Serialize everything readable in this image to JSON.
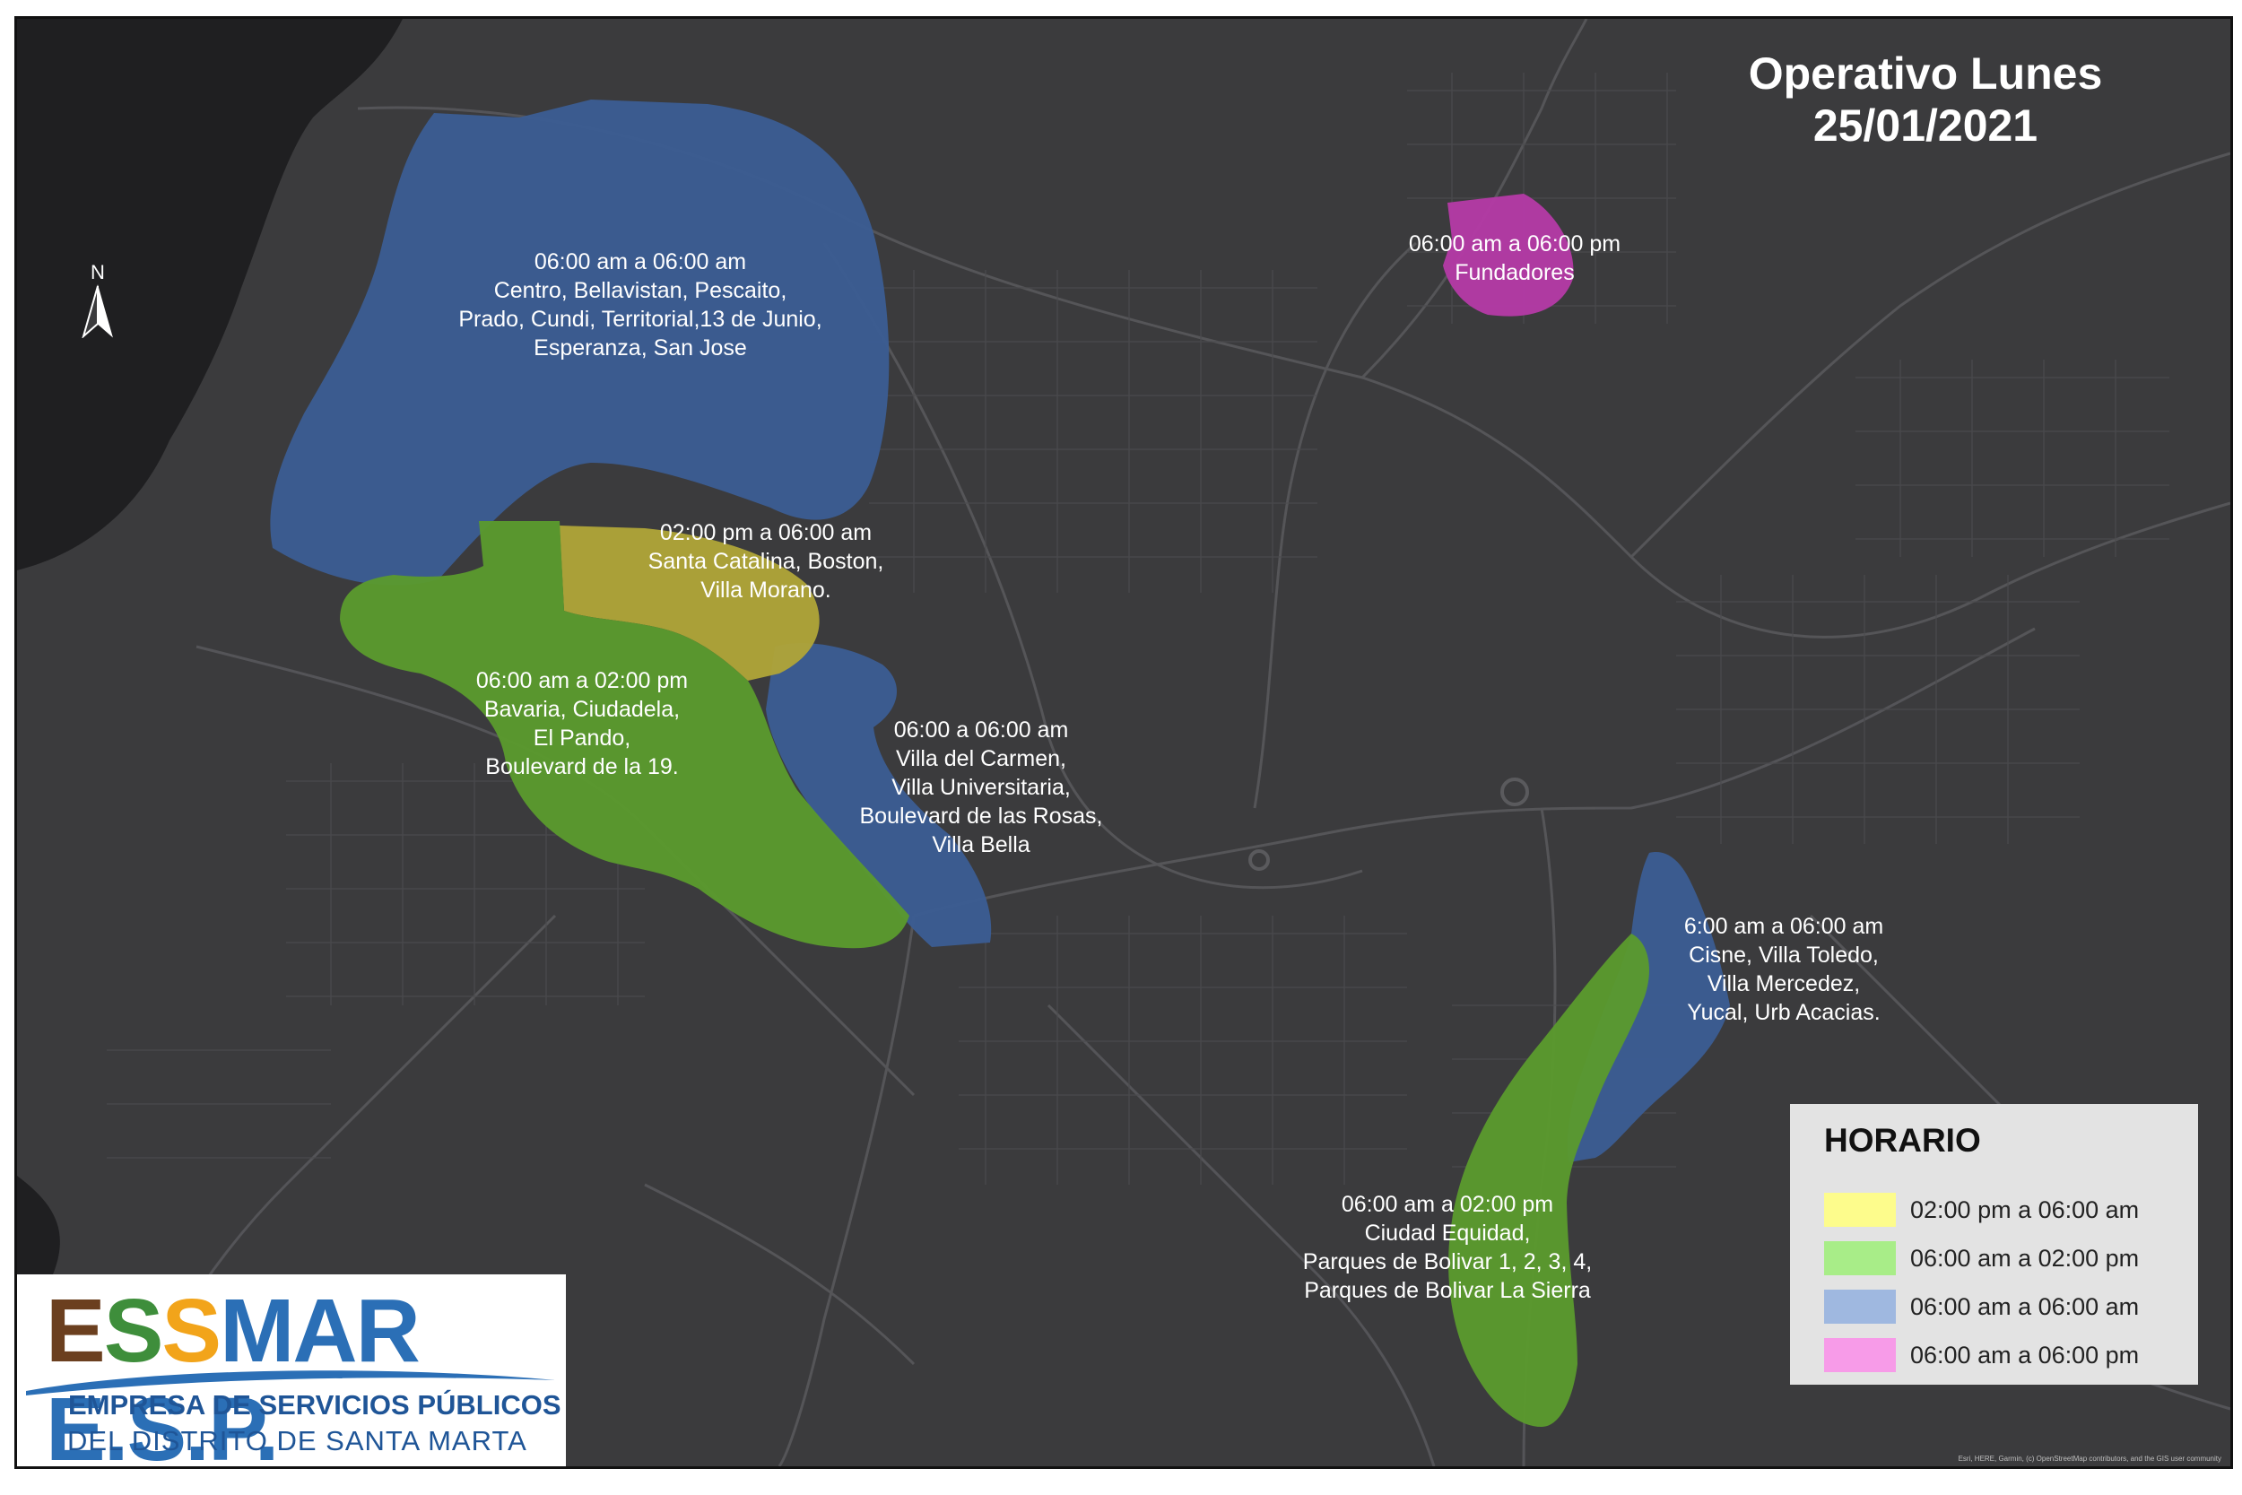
{
  "title": {
    "line1": "Operativo Lunes",
    "line2": "25/01/2021"
  },
  "north_arrow": {
    "letter": "N",
    "icon": "north-arrow-icon"
  },
  "colors": {
    "background": "#3b3b3d",
    "water": "#1f1f21",
    "roads": "#555558",
    "yellow": "#fdfc8c",
    "green": "#a8ed88",
    "blue": "#9fb8e0",
    "magenta": "#f79be8",
    "zone_yellow": "#b0a538",
    "zone_green": "#5b9b2d",
    "zone_blue": "#3b5d93",
    "zone_magenta": "#b53aa7"
  },
  "zones": [
    {
      "id": "centro",
      "color": "blue",
      "lines": [
        "06:00 am a 06:00 am",
        "Centro, Bellavistan, Pescaito,",
        "Prado, Cundi, Territorial,13 de Junio,",
        "Esperanza, San Jose"
      ]
    },
    {
      "id": "fundadores",
      "color": "magenta",
      "lines": [
        "06:00 am a 06:00 pm",
        "Fundadores"
      ]
    },
    {
      "id": "santa-catalina",
      "color": "yellow",
      "lines": [
        "02:00 pm a 06:00 am",
        "Santa Catalina, Boston,",
        "Villa Morano."
      ]
    },
    {
      "id": "bavaria",
      "color": "green",
      "lines": [
        "06:00 am a 02:00 pm",
        "Bavaria, Ciudadela,",
        "El Pando,",
        "Boulevard de la 19."
      ]
    },
    {
      "id": "villa-carmen",
      "color": "blue",
      "lines": [
        "06:00 a 06:00 am",
        "Villa del Carmen,",
        "Villa Universitaria,",
        "Boulevard de las Rosas,",
        "Villa Bella"
      ]
    },
    {
      "id": "cisne",
      "color": "blue",
      "lines": [
        "6:00 am a 06:00 am",
        "Cisne, Villa Toledo,",
        "Villa Mercedez,",
        "Yucal, Urb Acacias."
      ]
    },
    {
      "id": "ciudad-equidad",
      "color": "green",
      "lines": [
        "06:00 am a 02:00 pm",
        "Ciudad Equidad,",
        "Parques de Bolivar 1, 2, 3, 4,",
        "Parques de Bolivar La Sierra"
      ]
    }
  ],
  "legend": {
    "title": "HORARIO",
    "items": [
      {
        "label": "02:00 pm a 06:00 am",
        "color": "#fdfc8c"
      },
      {
        "label": "06:00 am a 02:00 pm",
        "color": "#a8ed88"
      },
      {
        "label": "06:00 am a 06:00 am",
        "color": "#9fb8e0"
      },
      {
        "label": "06:00 am a 06:00 pm",
        "color": "#f79be8"
      }
    ]
  },
  "logo": {
    "main": "ESSMAR E.S.P.",
    "line1": "EMPRESA DE SERVICIOS PÚBLICOS",
    "line2": "DEL DISTRITO DE SANTA MARTA"
  },
  "attribution": "Esri, HERE, Garmin, (c) OpenStreetMap contributors, and the GIS user community"
}
